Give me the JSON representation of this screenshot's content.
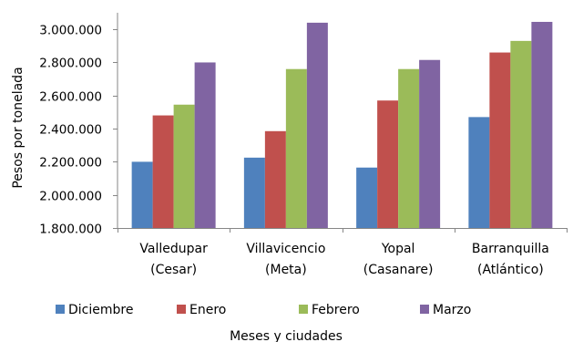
{
  "chart_data": {
    "type": "bar",
    "title": "",
    "xlabel": "Meses y ciudades",
    "ylabel": "Pesos por tonelada",
    "ylim": [
      1800000,
      3100000
    ],
    "y_ticks": [
      1800000,
      2000000,
      2200000,
      2400000,
      2600000,
      2800000,
      3000000
    ],
    "y_tick_labels": [
      "1.800.000",
      "2.000.000",
      "2.200.000",
      "2.400.000",
      "2.600.000",
      "2.800.000",
      "3.000.000"
    ],
    "categories": [
      [
        "Valledupar",
        "(Cesar)"
      ],
      [
        "Villavicencio",
        "(Meta)"
      ],
      [
        "Yopal",
        "(Casanare)"
      ],
      [
        "Barranquilla",
        "(Atlántico)"
      ]
    ],
    "series": [
      {
        "name": "Diciembre",
        "color": "#4F81BD",
        "values": [
          2200000,
          2225000,
          2165000,
          2470000
        ]
      },
      {
        "name": "Enero",
        "color": "#C0504D",
        "values": [
          2480000,
          2385000,
          2570000,
          2860000
        ]
      },
      {
        "name": "Febrero",
        "color": "#9BBB59",
        "values": [
          2545000,
          2760000,
          2760000,
          2930000
        ]
      },
      {
        "name": "Marzo",
        "color": "#8064A2",
        "values": [
          2800000,
          3040000,
          2815000,
          3045000
        ]
      }
    ],
    "grid": false,
    "legend_position": "bottom"
  }
}
